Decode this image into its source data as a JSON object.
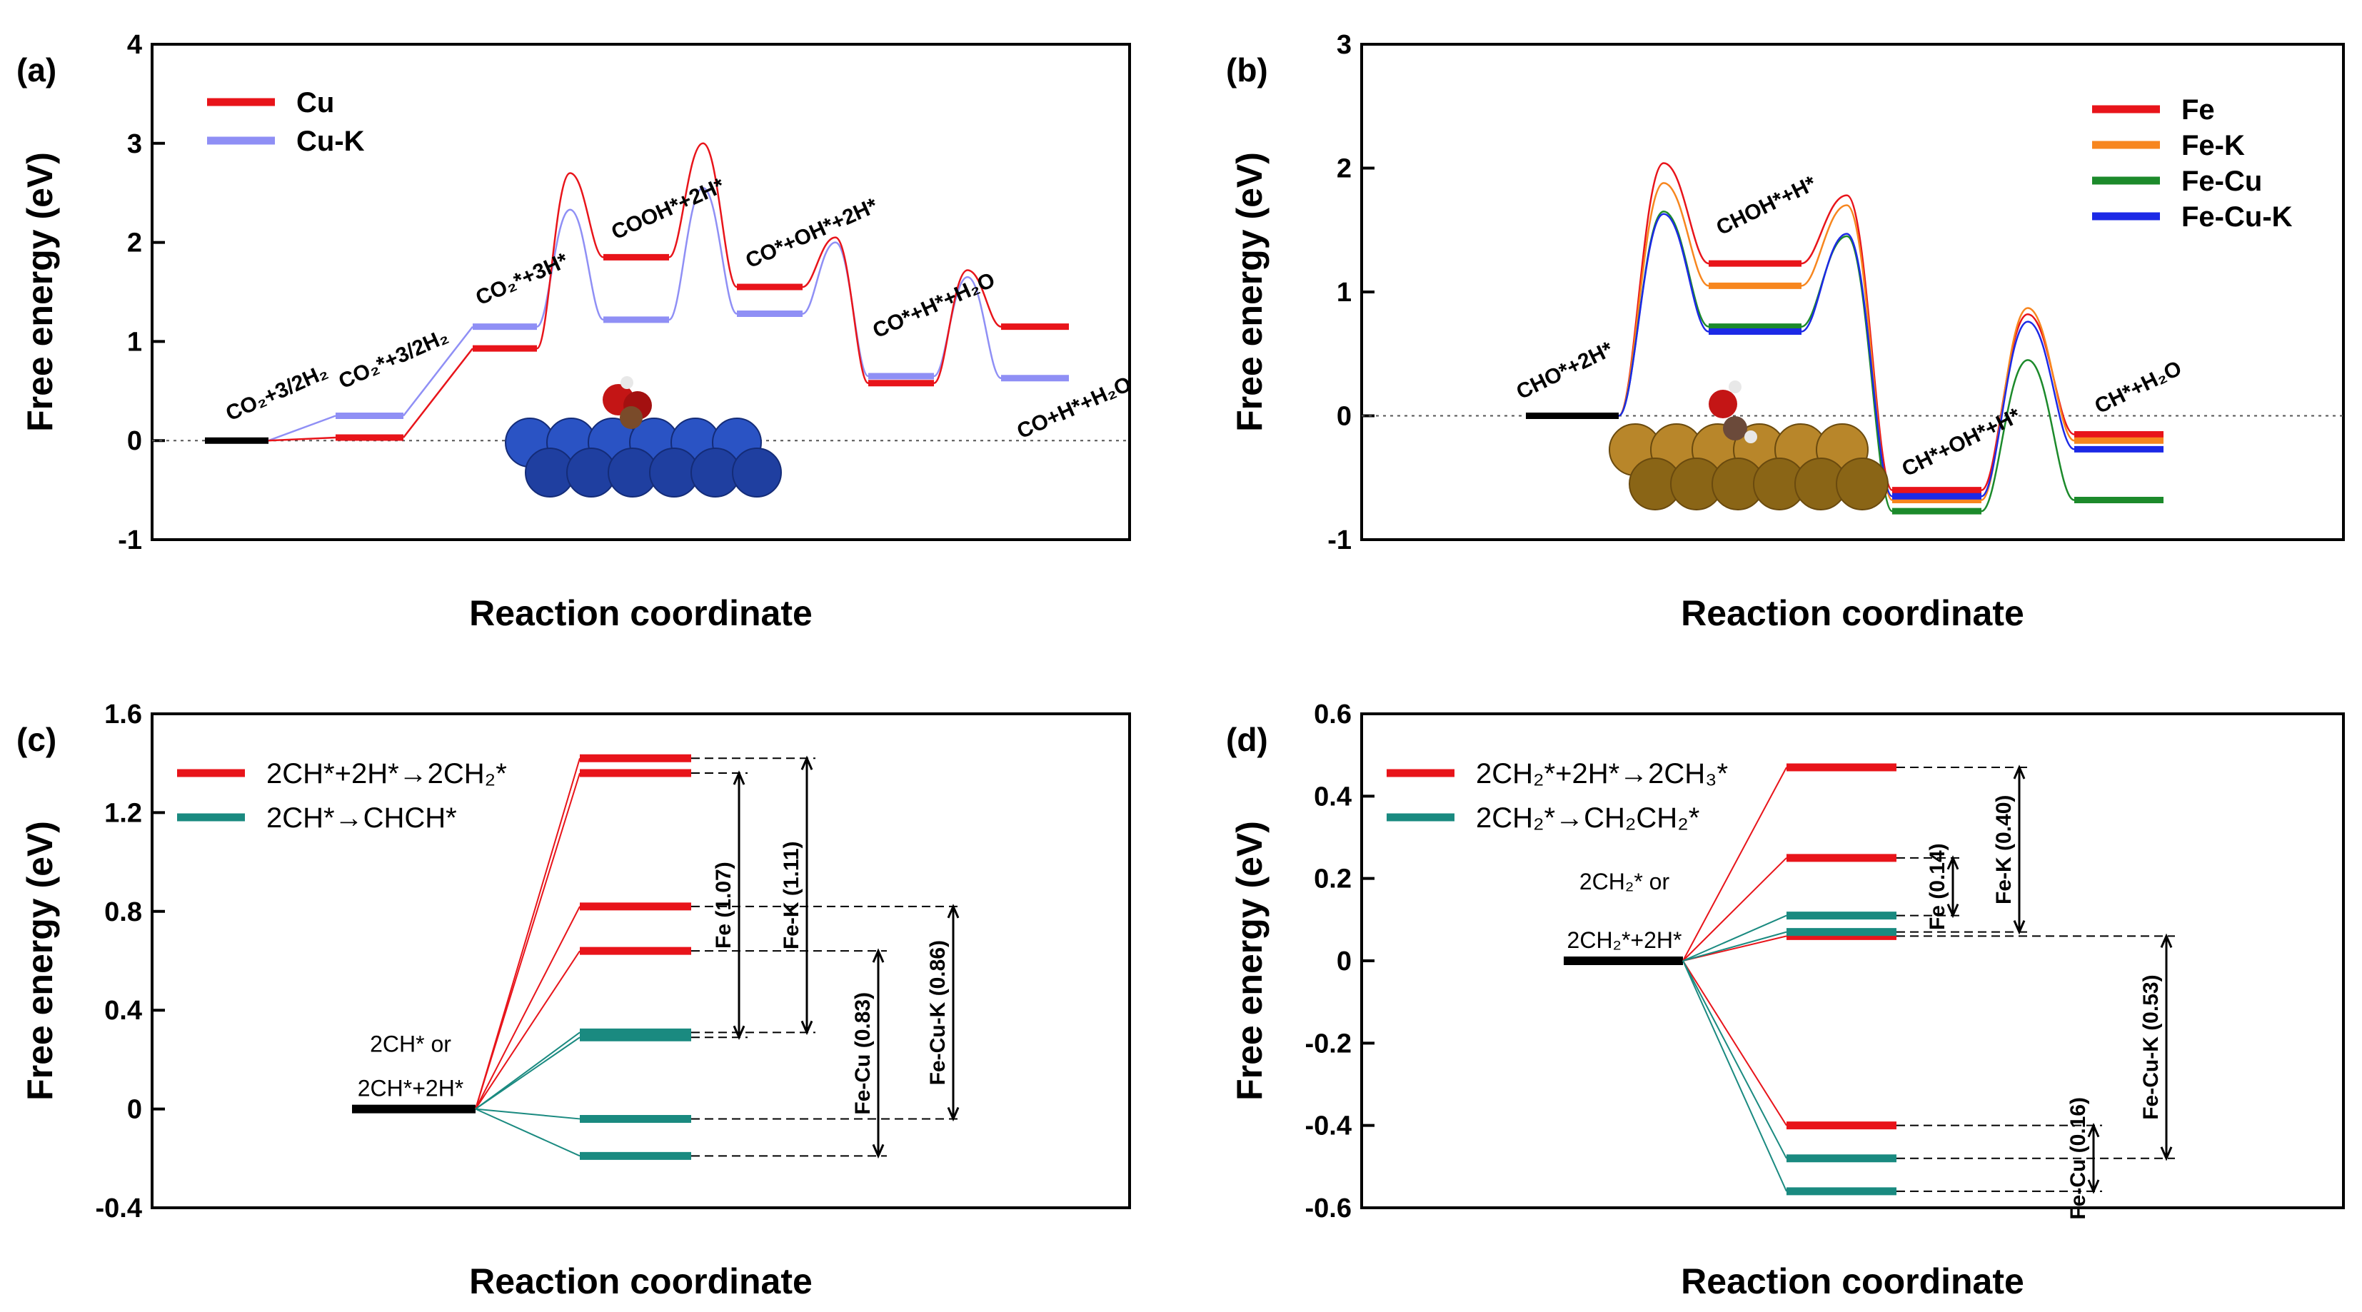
{
  "figure": {
    "background": "#ffffff",
    "colors": {
      "Cu": "#e8141a",
      "Cu-K": "#8f8ff5",
      "Fe": "#e8141a",
      "Fe-K": "#f7861e",
      "Fe-Cu": "#1c8a2b",
      "Fe-Cu-K": "#1c29e6",
      "chch": "#1a8a80",
      "ref": "#000000"
    }
  },
  "chart_data": [
    {
      "panel": "(a)",
      "type": "line",
      "kind": "energy_profile",
      "xlabel": "Reaction coordinate",
      "ylabel": "Free energy (eV)",
      "ylim": [
        -1,
        4
      ],
      "yticks": [
        "-1",
        "0",
        "1",
        "2",
        "3",
        "4"
      ],
      "yticks_values": [
        -1,
        0,
        1,
        2,
        3,
        4
      ],
      "legend": [
        "Cu",
        "Cu-K"
      ],
      "legend_position": "top-left",
      "states": [
        "CO₂+3/2H₂",
        "CO₂*+3/2H₂",
        "CO₂*+3H*",
        "COOH*+2H*",
        "CO*+OH*+2H*",
        "CO*+H*+H₂O",
        "CO+H*+H₂O"
      ],
      "series": [
        {
          "name": "Cu",
          "levels": [
            0,
            0.03,
            0.93,
            1.85,
            1.55,
            0.58,
            1.15
          ],
          "barriers": [
            null,
            null,
            2.7,
            3.0,
            2.05,
            1.72
          ]
        },
        {
          "name": "Cu-K",
          "levels": [
            0,
            0.25,
            1.15,
            1.22,
            1.28,
            0.65,
            0.63
          ],
          "barriers": [
            null,
            null,
            2.33,
            2.55,
            2.0,
            1.65
          ]
        }
      ],
      "reference_level": 0
    },
    {
      "panel": "(b)",
      "type": "line",
      "kind": "energy_profile",
      "xlabel": "Reaction coordinate",
      "ylabel": "Free energy (eV)",
      "ylim": [
        -1,
        3
      ],
      "yticks": [
        "-1",
        "0",
        "1",
        "2",
        "3"
      ],
      "yticks_values": [
        -1,
        0,
        1,
        2,
        3
      ],
      "legend": [
        "Fe",
        "Fe-K",
        "Fe-Cu",
        "Fe-Cu-K"
      ],
      "legend_position": "top-right",
      "states": [
        "CHO*+2H*",
        "CHOH*+H*",
        "CH*+OH*+H*",
        "CH*+H₂O"
      ],
      "series": [
        {
          "name": "Fe",
          "levels": [
            0,
            1.23,
            -0.6,
            -0.15
          ],
          "barriers": [
            2.04,
            1.78,
            0.82
          ]
        },
        {
          "name": "Fe-K",
          "levels": [
            0,
            1.05,
            -0.68,
            -0.2
          ],
          "barriers": [
            1.88,
            1.7,
            0.87
          ]
        },
        {
          "name": "Fe-Cu",
          "levels": [
            0,
            0.72,
            -0.77,
            -0.68
          ],
          "barriers": [
            1.65,
            1.45,
            0.45
          ]
        },
        {
          "name": "Fe-Cu-K",
          "levels": [
            0,
            0.68,
            -0.65,
            -0.27
          ],
          "barriers": [
            1.63,
            1.47,
            0.76
          ]
        }
      ],
      "reference_level": 0
    },
    {
      "panel": "(c)",
      "type": "line",
      "kind": "energy_levels",
      "xlabel": "Reaction coordinate",
      "ylabel": "Free energy (eV)",
      "ylim": [
        -0.4,
        1.6
      ],
      "yticks": [
        "-0.4",
        "0",
        "0.4",
        "0.8",
        "1.2",
        "1.6"
      ],
      "yticks_values": [
        -0.4,
        0,
        0.4,
        0.8,
        1.2,
        1.6
      ],
      "legend": [
        "2CH*+2H*→2CH₂*",
        "2CH*→CHCH*"
      ],
      "legend_position": "top-left",
      "initial_label_1": "2CH* or",
      "initial_label_2": "2CH*+2H*",
      "red_levels": [
        1.42,
        1.36,
        0.82,
        0.64
      ],
      "teal_levels": [
        0.31,
        0.29,
        -0.04,
        -0.19
      ],
      "gaps": [
        {
          "label": "Fe (1.07)",
          "from": 0.29,
          "to": 1.36
        },
        {
          "label": "Fe-K (1.11)",
          "from": 0.31,
          "to": 1.42
        },
        {
          "label": "Fe-Cu (0.83)",
          "from": -0.19,
          "to": 0.64
        },
        {
          "label": "Fe-Cu-K (0.86)",
          "from": -0.04,
          "to": 0.82
        }
      ]
    },
    {
      "panel": "(d)",
      "type": "line",
      "kind": "energy_levels",
      "xlabel": "Reaction coordinate",
      "ylabel": "Free energy (eV)",
      "ylim": [
        -0.6,
        0.6
      ],
      "yticks": [
        "-0.6",
        "-0.4",
        "-0.2",
        "0",
        "0.2",
        "0.4",
        "0.6"
      ],
      "yticks_values": [
        -0.6,
        -0.4,
        -0.2,
        0,
        0.2,
        0.4,
        0.6
      ],
      "legend": [
        "2CH₂*+2H*→2CH₃*",
        "2CH₂*→CH₂CH₂*"
      ],
      "legend_position": "top-left",
      "initial_label_1": "2CH₂* or",
      "initial_label_2": "2CH₂*+2H*",
      "red_levels": [
        0.47,
        0.25,
        0.06,
        -0.4
      ],
      "teal_levels": [
        0.11,
        0.07,
        -0.48,
        -0.56
      ],
      "gaps": [
        {
          "label": "Fe (0.14)",
          "from": 0.11,
          "to": 0.25
        },
        {
          "label": "Fe-K (0.40)",
          "from": 0.07,
          "to": 0.47
        },
        {
          "label": "Fe-Cu (0.16)",
          "from": -0.56,
          "to": -0.4
        },
        {
          "label": "Fe-Cu-K (0.53)",
          "from": -0.48,
          "to": 0.06
        }
      ]
    }
  ]
}
